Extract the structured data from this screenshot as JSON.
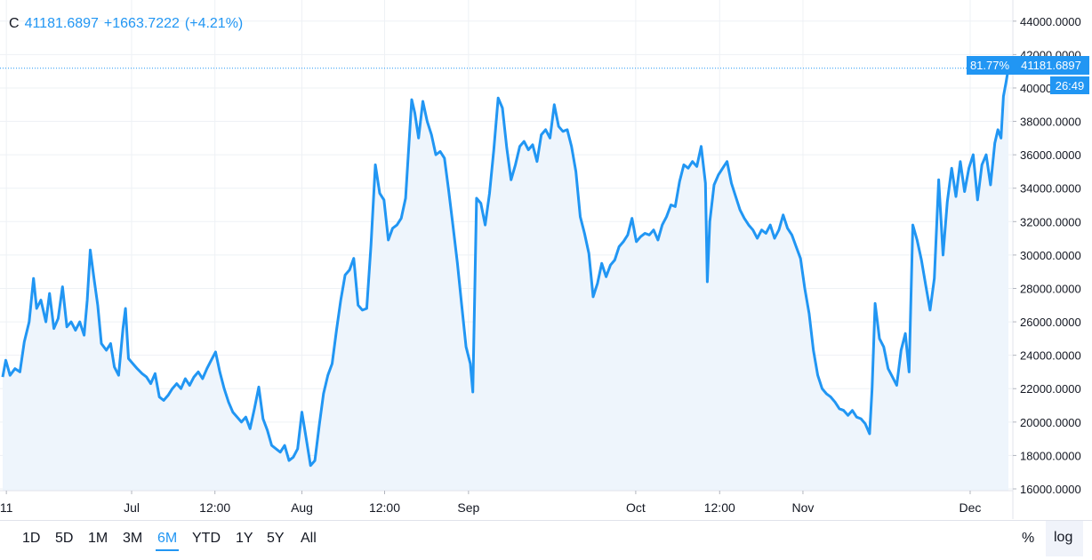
{
  "legend": {
    "symbol": "C",
    "close": "41181.6897",
    "change": "+1663.7222",
    "change_pct": "(+4.21%)"
  },
  "price_label": {
    "percent": "81.77%",
    "value": "41181.6897",
    "countdown": "26:49"
  },
  "ranges": [
    "1D",
    "5D",
    "1M",
    "3M",
    "6M",
    "YTD",
    "1Y",
    "5Y",
    "All"
  ],
  "active_range": "6M",
  "scale_buttons": {
    "percent": "%",
    "log": "log"
  },
  "colors": {
    "line": "#2196f3",
    "fill": "#eef5fc",
    "grid": "#eef1f5",
    "axis_text": "#131722"
  },
  "chart_data": {
    "type": "area",
    "title": "",
    "xlabel": "",
    "ylabel": "",
    "ylim": [
      16000,
      45000
    ],
    "y_ticks": [
      "44000.0000",
      "42000.0000",
      "40000.0000",
      "38000.0000",
      "36000.0000",
      "34000.0000",
      "32000.0000",
      "30000.0000",
      "28000.0000",
      "26000.0000",
      "24000.0000",
      "22000.0000",
      "20000.0000",
      "18000.0000",
      "16000.0000"
    ],
    "x_ticks": [
      {
        "label": "11",
        "t": 0.6
      },
      {
        "label": "Jul",
        "t": 20.9
      },
      {
        "label": "12:00",
        "t": 34.4
      },
      {
        "label": "Aug",
        "t": 48.5
      },
      {
        "label": "12:00",
        "t": 61.9
      },
      {
        "label": "Sep",
        "t": 75.5
      },
      {
        "label": "Oct",
        "t": 102.6
      },
      {
        "label": "12:00",
        "t": 116.2
      },
      {
        "label": "Nov",
        "t": 129.7
      },
      {
        "label": "Dec",
        "t": 156.8
      }
    ],
    "last_value": 41181.6897,
    "series": [
      {
        "points": [
          [
            0.0,
            22700
          ],
          [
            0.5,
            23700
          ],
          [
            1.2,
            22800
          ],
          [
            2.0,
            23200
          ],
          [
            2.8,
            23000
          ],
          [
            3.5,
            24800
          ],
          [
            4.3,
            26000
          ],
          [
            5.0,
            28600
          ],
          [
            5.5,
            26800
          ],
          [
            6.2,
            27300
          ],
          [
            7.0,
            26000
          ],
          [
            7.6,
            27700
          ],
          [
            8.3,
            25600
          ],
          [
            9.0,
            26200
          ],
          [
            9.7,
            28100
          ],
          [
            10.4,
            25700
          ],
          [
            11.1,
            26000
          ],
          [
            11.8,
            25500
          ],
          [
            12.5,
            26000
          ],
          [
            13.2,
            25200
          ],
          [
            13.7,
            27300
          ],
          [
            14.2,
            30300
          ],
          [
            14.8,
            28600
          ],
          [
            15.4,
            27000
          ],
          [
            16.0,
            24700
          ],
          [
            16.8,
            24300
          ],
          [
            17.5,
            24700
          ],
          [
            18.1,
            23300
          ],
          [
            18.8,
            22800
          ],
          [
            19.5,
            25600
          ],
          [
            19.9,
            26800
          ],
          [
            20.4,
            23800
          ],
          [
            21.1,
            23500
          ],
          [
            21.8,
            23200
          ],
          [
            22.6,
            22900
          ],
          [
            23.3,
            22700
          ],
          [
            24.0,
            22300
          ],
          [
            24.7,
            22900
          ],
          [
            25.4,
            21500
          ],
          [
            26.1,
            21300
          ],
          [
            26.8,
            21600
          ],
          [
            27.5,
            22000
          ],
          [
            28.2,
            22300
          ],
          [
            28.9,
            22000
          ],
          [
            29.6,
            22600
          ],
          [
            30.3,
            22200
          ],
          [
            31.0,
            22700
          ],
          [
            31.7,
            23000
          ],
          [
            32.4,
            22600
          ],
          [
            33.1,
            23200
          ],
          [
            33.8,
            23700
          ],
          [
            34.5,
            24200
          ],
          [
            35.2,
            23000
          ],
          [
            35.9,
            22000
          ],
          [
            36.6,
            21200
          ],
          [
            37.3,
            20600
          ],
          [
            38.0,
            20300
          ],
          [
            38.7,
            20000
          ],
          [
            39.4,
            20300
          ],
          [
            40.1,
            19600
          ],
          [
            40.8,
            20800
          ],
          [
            41.5,
            22100
          ],
          [
            42.2,
            20200
          ],
          [
            42.9,
            19500
          ],
          [
            43.6,
            18600
          ],
          [
            44.3,
            18400
          ],
          [
            45.0,
            18200
          ],
          [
            45.7,
            18600
          ],
          [
            46.4,
            17700
          ],
          [
            47.1,
            17900
          ],
          [
            47.8,
            18400
          ],
          [
            48.5,
            20600
          ],
          [
            49.2,
            19000
          ],
          [
            49.9,
            17400
          ],
          [
            50.6,
            17700
          ],
          [
            51.3,
            19800
          ],
          [
            52.0,
            21700
          ],
          [
            52.7,
            22800
          ],
          [
            53.4,
            23500
          ],
          [
            54.1,
            25500
          ],
          [
            54.8,
            27300
          ],
          [
            55.5,
            28800
          ],
          [
            56.2,
            29100
          ],
          [
            56.9,
            29800
          ],
          [
            57.6,
            27000
          ],
          [
            58.3,
            26700
          ],
          [
            59.0,
            26800
          ],
          [
            59.7,
            30600
          ],
          [
            60.4,
            35400
          ],
          [
            61.1,
            33700
          ],
          [
            61.8,
            33300
          ],
          [
            62.5,
            30900
          ],
          [
            63.2,
            31600
          ],
          [
            63.9,
            31800
          ],
          [
            64.6,
            32200
          ],
          [
            65.3,
            33400
          ],
          [
            65.8,
            36400
          ],
          [
            66.3,
            39300
          ],
          [
            66.8,
            38500
          ],
          [
            67.4,
            37000
          ],
          [
            68.1,
            39200
          ],
          [
            68.8,
            38000
          ],
          [
            69.5,
            37200
          ],
          [
            70.2,
            36000
          ],
          [
            70.9,
            36200
          ],
          [
            71.6,
            35800
          ],
          [
            72.3,
            33800
          ],
          [
            73.0,
            31700
          ],
          [
            73.7,
            29500
          ],
          [
            74.4,
            27000
          ],
          [
            75.1,
            24500
          ],
          [
            75.8,
            23500
          ],
          [
            76.2,
            21800
          ],
          [
            76.8,
            33400
          ],
          [
            77.5,
            33100
          ],
          [
            78.2,
            31800
          ],
          [
            78.9,
            33700
          ],
          [
            79.6,
            36300
          ],
          [
            80.3,
            39400
          ],
          [
            81.0,
            38800
          ],
          [
            81.7,
            36400
          ],
          [
            82.4,
            34500
          ],
          [
            83.1,
            35400
          ],
          [
            83.8,
            36500
          ],
          [
            84.5,
            36800
          ],
          [
            85.2,
            36300
          ],
          [
            85.9,
            36600
          ],
          [
            86.6,
            35600
          ],
          [
            87.3,
            37200
          ],
          [
            88.0,
            37500
          ],
          [
            88.7,
            37000
          ],
          [
            89.4,
            39000
          ],
          [
            90.1,
            37700
          ],
          [
            90.8,
            37400
          ],
          [
            91.5,
            37500
          ],
          [
            92.2,
            36500
          ],
          [
            92.9,
            35000
          ],
          [
            93.6,
            32300
          ],
          [
            94.3,
            31300
          ],
          [
            95.0,
            30100
          ],
          [
            95.7,
            27500
          ],
          [
            96.4,
            28300
          ],
          [
            97.1,
            29500
          ],
          [
            97.8,
            28700
          ],
          [
            98.5,
            29400
          ],
          [
            99.2,
            29700
          ],
          [
            99.9,
            30500
          ],
          [
            100.6,
            30800
          ],
          [
            101.3,
            31200
          ],
          [
            102.0,
            32200
          ],
          [
            102.7,
            30800
          ],
          [
            103.4,
            31100
          ],
          [
            104.1,
            31300
          ],
          [
            104.8,
            31200
          ],
          [
            105.5,
            31500
          ],
          [
            106.2,
            30900
          ],
          [
            106.9,
            31800
          ],
          [
            107.6,
            32300
          ],
          [
            108.3,
            33000
          ],
          [
            109.0,
            32900
          ],
          [
            109.7,
            34400
          ],
          [
            110.4,
            35400
          ],
          [
            111.1,
            35200
          ],
          [
            111.8,
            35600
          ],
          [
            112.5,
            35300
          ],
          [
            113.2,
            36500
          ],
          [
            113.9,
            34300
          ],
          [
            114.2,
            28400
          ],
          [
            114.6,
            32000
          ],
          [
            115.3,
            34200
          ],
          [
            116.0,
            34800
          ],
          [
            116.7,
            35200
          ],
          [
            117.4,
            35600
          ],
          [
            118.1,
            34300
          ],
          [
            118.8,
            33500
          ],
          [
            119.5,
            32700
          ],
          [
            120.2,
            32200
          ],
          [
            120.9,
            31800
          ],
          [
            121.6,
            31500
          ],
          [
            122.3,
            31000
          ],
          [
            123.0,
            31500
          ],
          [
            123.7,
            31300
          ],
          [
            124.4,
            31800
          ],
          [
            125.1,
            31000
          ],
          [
            125.8,
            31500
          ],
          [
            126.5,
            32400
          ],
          [
            127.2,
            31600
          ],
          [
            127.9,
            31200
          ],
          [
            128.6,
            30500
          ],
          [
            129.3,
            29800
          ],
          [
            130.0,
            28000
          ],
          [
            130.7,
            26500
          ],
          [
            131.4,
            24300
          ],
          [
            132.1,
            22800
          ],
          [
            132.8,
            22000
          ],
          [
            133.5,
            21700
          ],
          [
            134.2,
            21500
          ],
          [
            134.9,
            21200
          ],
          [
            135.6,
            20800
          ],
          [
            136.3,
            20700
          ],
          [
            137.0,
            20400
          ],
          [
            137.7,
            20700
          ],
          [
            138.4,
            20300
          ],
          [
            139.1,
            20200
          ],
          [
            139.8,
            19900
          ],
          [
            140.5,
            19300
          ],
          [
            140.9,
            22000
          ],
          [
            141.4,
            27100
          ],
          [
            142.1,
            25000
          ],
          [
            142.8,
            24500
          ],
          [
            143.5,
            23200
          ],
          [
            144.2,
            22700
          ],
          [
            144.9,
            22200
          ],
          [
            145.6,
            24300
          ],
          [
            146.3,
            25300
          ],
          [
            146.9,
            23000
          ],
          [
            147.5,
            31800
          ],
          [
            148.2,
            30900
          ],
          [
            148.9,
            29700
          ],
          [
            149.6,
            28200
          ],
          [
            150.3,
            26700
          ],
          [
            151.0,
            28600
          ],
          [
            151.7,
            34500
          ],
          [
            152.4,
            30000
          ],
          [
            153.1,
            33200
          ],
          [
            153.8,
            35200
          ],
          [
            154.5,
            33500
          ],
          [
            155.2,
            35600
          ],
          [
            155.9,
            33800
          ],
          [
            156.6,
            35200
          ],
          [
            157.3,
            36000
          ],
          [
            158.0,
            33300
          ],
          [
            158.7,
            35400
          ],
          [
            159.4,
            36000
          ],
          [
            160.1,
            34200
          ],
          [
            160.8,
            36700
          ],
          [
            161.3,
            37500
          ],
          [
            161.8,
            37000
          ],
          [
            162.2,
            39500
          ],
          [
            162.6,
            40300
          ],
          [
            163.0,
            41181.7
          ]
        ]
      }
    ]
  }
}
